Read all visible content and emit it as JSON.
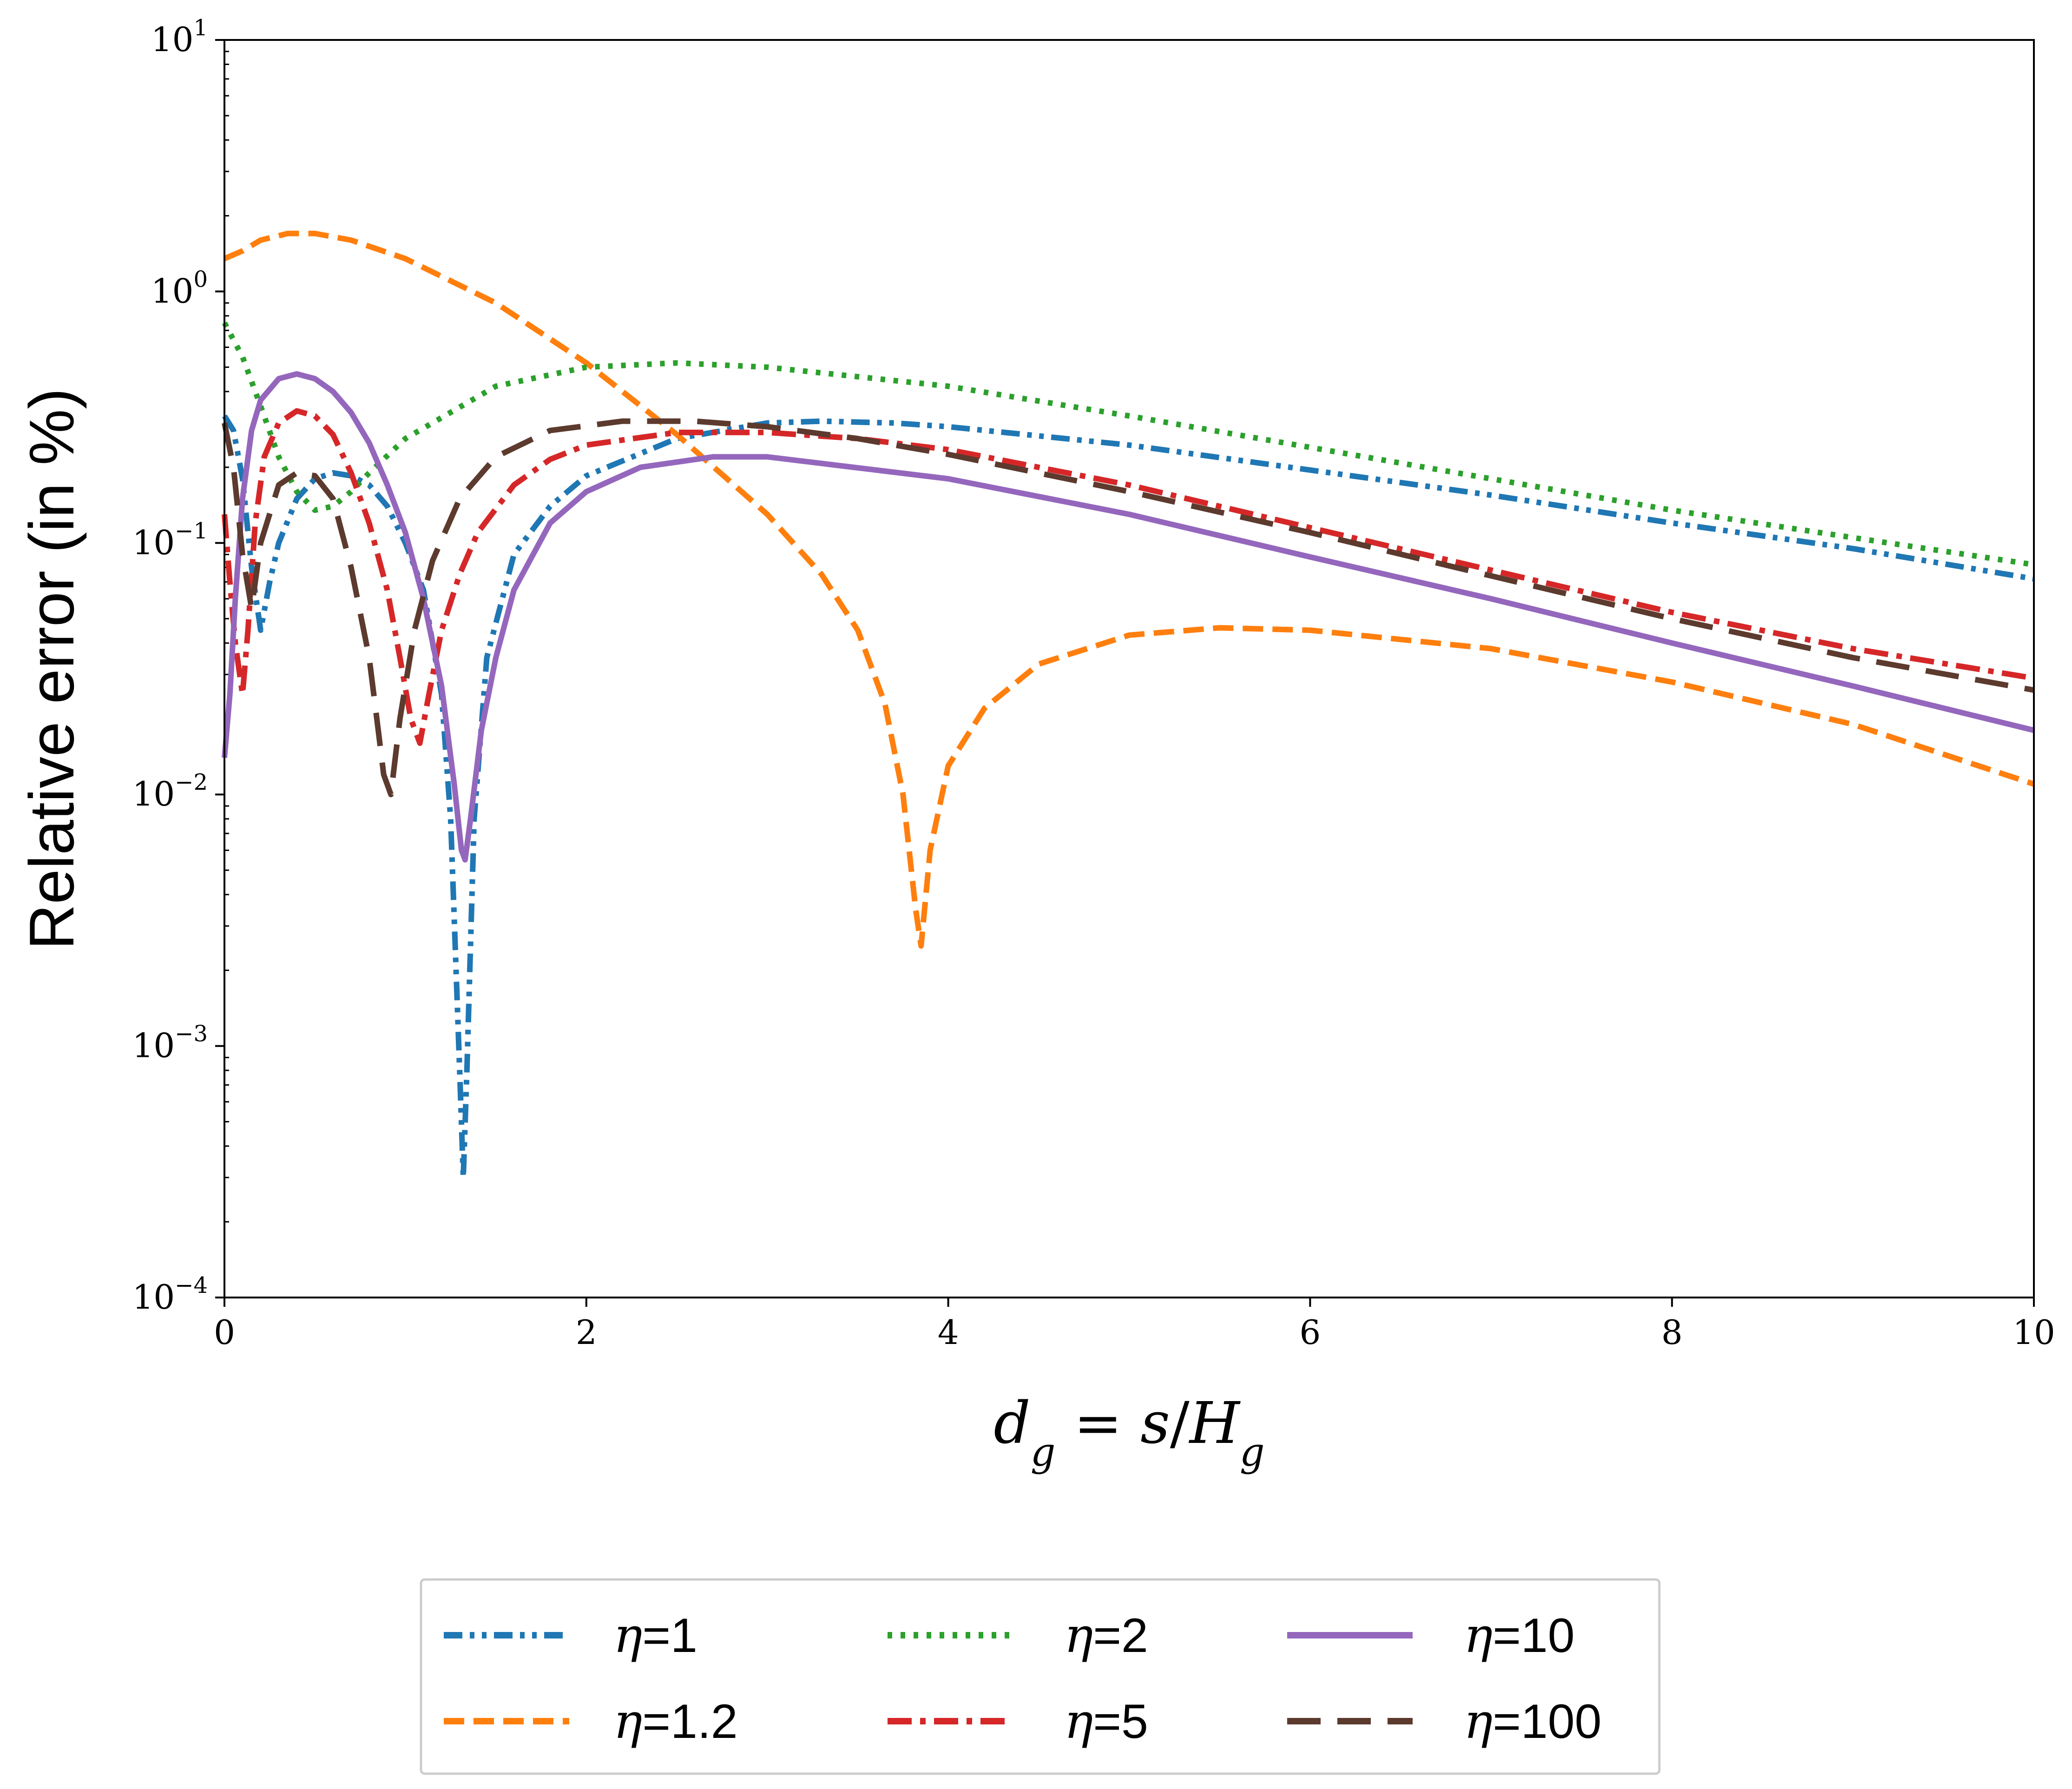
{
  "chart_data": {
    "type": "line",
    "title": "",
    "xlabel": "d_g = s/H_g",
    "xlabel_parts": {
      "d": "d",
      "sub_g": "g",
      "eq": " = ",
      "s": "s",
      "slash": "/",
      "H": "H",
      "sub_g2": "g"
    },
    "ylabel": "Relative error (in %)",
    "yscale": "log",
    "xlim": [
      0,
      10
    ],
    "ylim": [
      0.0001,
      10
    ],
    "x_ticks": [
      "0",
      "2",
      "4",
      "6",
      "8",
      "10"
    ],
    "y_ticks": [
      {
        "base": "10",
        "exp": "−4"
      },
      {
        "base": "10",
        "exp": "−3"
      },
      {
        "base": "10",
        "exp": "−2"
      },
      {
        "base": "10",
        "exp": "−1"
      },
      {
        "base": "10",
        "exp": "0"
      },
      {
        "base": "10",
        "exp": "1"
      }
    ],
    "legend_position": "below-center",
    "legend_prefix": "η",
    "series": [
      {
        "name": "η=1",
        "label_suffix": "=1",
        "color": "#1f77b4",
        "style": "dashdotdot",
        "points": [
          [
            0,
            0.32
          ],
          [
            0.05,
            0.28
          ],
          [
            0.1,
            0.18
          ],
          [
            0.15,
            0.08
          ],
          [
            0.2,
            0.045
          ],
          [
            0.25,
            0.07
          ],
          [
            0.3,
            0.1
          ],
          [
            0.4,
            0.15
          ],
          [
            0.5,
            0.18
          ],
          [
            0.6,
            0.19
          ],
          [
            0.7,
            0.185
          ],
          [
            0.8,
            0.17
          ],
          [
            0.9,
            0.14
          ],
          [
            1.0,
            0.1
          ],
          [
            1.1,
            0.065
          ],
          [
            1.2,
            0.025
          ],
          [
            1.25,
            0.008
          ],
          [
            1.3,
            0.0008
          ],
          [
            1.32,
            0.0003
          ],
          [
            1.34,
            0.0008
          ],
          [
            1.38,
            0.008
          ],
          [
            1.45,
            0.035
          ],
          [
            1.6,
            0.09
          ],
          [
            1.8,
            0.14
          ],
          [
            2.0,
            0.185
          ],
          [
            2.5,
            0.26
          ],
          [
            3.0,
            0.3
          ],
          [
            3.3,
            0.305
          ],
          [
            3.7,
            0.3
          ],
          [
            4.0,
            0.29
          ],
          [
            5,
            0.245
          ],
          [
            6,
            0.195
          ],
          [
            7,
            0.155
          ],
          [
            8,
            0.12
          ],
          [
            9,
            0.095
          ],
          [
            10,
            0.072
          ]
        ]
      },
      {
        "name": "η=1.2",
        "label_suffix": "=1.2",
        "color": "#ff7f0e",
        "style": "dashed",
        "points": [
          [
            0,
            1.35
          ],
          [
            0.1,
            1.45
          ],
          [
            0.2,
            1.6
          ],
          [
            0.35,
            1.7
          ],
          [
            0.5,
            1.7
          ],
          [
            0.7,
            1.6
          ],
          [
            1.0,
            1.35
          ],
          [
            1.5,
            0.9
          ],
          [
            2.0,
            0.52
          ],
          [
            2.5,
            0.27
          ],
          [
            3.0,
            0.13
          ],
          [
            3.3,
            0.075
          ],
          [
            3.5,
            0.045
          ],
          [
            3.65,
            0.023
          ],
          [
            3.75,
            0.01
          ],
          [
            3.82,
            0.0035
          ],
          [
            3.85,
            0.0025
          ],
          [
            3.9,
            0.006
          ],
          [
            4.0,
            0.013
          ],
          [
            4.2,
            0.022
          ],
          [
            4.5,
            0.033
          ],
          [
            5.0,
            0.043
          ],
          [
            5.5,
            0.046
          ],
          [
            6.0,
            0.045
          ],
          [
            7.0,
            0.038
          ],
          [
            8.0,
            0.028
          ],
          [
            9.0,
            0.019
          ],
          [
            10,
            0.011
          ]
        ]
      },
      {
        "name": "η=2",
        "label_suffix": "=2",
        "color": "#2ca02c",
        "style": "dotted",
        "points": [
          [
            0,
            0.75
          ],
          [
            0.1,
            0.55
          ],
          [
            0.2,
            0.35
          ],
          [
            0.3,
            0.22
          ],
          [
            0.4,
            0.16
          ],
          [
            0.5,
            0.135
          ],
          [
            0.6,
            0.14
          ],
          [
            0.7,
            0.16
          ],
          [
            0.8,
            0.19
          ],
          [
            1.0,
            0.26
          ],
          [
            1.5,
            0.42
          ],
          [
            2.0,
            0.5
          ],
          [
            2.5,
            0.52
          ],
          [
            3.0,
            0.5
          ],
          [
            4.0,
            0.42
          ],
          [
            5.0,
            0.32
          ],
          [
            6.0,
            0.24
          ],
          [
            7.0,
            0.18
          ],
          [
            8.0,
            0.135
          ],
          [
            9.0,
            0.105
          ],
          [
            10,
            0.082
          ]
        ]
      },
      {
        "name": "η=5",
        "label_suffix": "=5",
        "color": "#d62728",
        "style": "dashdot",
        "points": [
          [
            0,
            0.13
          ],
          [
            0.03,
            0.07
          ],
          [
            0.06,
            0.04
          ],
          [
            0.1,
            0.025
          ],
          [
            0.13,
            0.045
          ],
          [
            0.17,
            0.12
          ],
          [
            0.22,
            0.22
          ],
          [
            0.3,
            0.3
          ],
          [
            0.4,
            0.335
          ],
          [
            0.5,
            0.32
          ],
          [
            0.6,
            0.27
          ],
          [
            0.7,
            0.19
          ],
          [
            0.8,
            0.12
          ],
          [
            0.9,
            0.065
          ],
          [
            0.97,
            0.035
          ],
          [
            1.03,
            0.02
          ],
          [
            1.08,
            0.016
          ],
          [
            1.13,
            0.025
          ],
          [
            1.2,
            0.045
          ],
          [
            1.3,
            0.075
          ],
          [
            1.4,
            0.11
          ],
          [
            1.6,
            0.17
          ],
          [
            1.8,
            0.215
          ],
          [
            2.0,
            0.245
          ],
          [
            2.5,
            0.275
          ],
          [
            3.0,
            0.275
          ],
          [
            3.5,
            0.26
          ],
          [
            4.0,
            0.235
          ],
          [
            5.0,
            0.17
          ],
          [
            6.0,
            0.115
          ],
          [
            7.0,
            0.078
          ],
          [
            8.0,
            0.053
          ],
          [
            9.0,
            0.038
          ],
          [
            10,
            0.029
          ]
        ]
      },
      {
        "name": "η=10",
        "label_suffix": "=10",
        "color": "#9467bd",
        "style": "solid",
        "points": [
          [
            0,
            0.014
          ],
          [
            0.03,
            0.025
          ],
          [
            0.06,
            0.06
          ],
          [
            0.1,
            0.15
          ],
          [
            0.15,
            0.28
          ],
          [
            0.2,
            0.37
          ],
          [
            0.3,
            0.45
          ],
          [
            0.4,
            0.47
          ],
          [
            0.5,
            0.45
          ],
          [
            0.6,
            0.4
          ],
          [
            0.7,
            0.33
          ],
          [
            0.8,
            0.25
          ],
          [
            0.9,
            0.17
          ],
          [
            1.0,
            0.11
          ],
          [
            1.1,
            0.06
          ],
          [
            1.2,
            0.027
          ],
          [
            1.27,
            0.011
          ],
          [
            1.31,
            0.006
          ],
          [
            1.33,
            0.0055
          ],
          [
            1.36,
            0.008
          ],
          [
            1.42,
            0.018
          ],
          [
            1.5,
            0.035
          ],
          [
            1.6,
            0.065
          ],
          [
            1.8,
            0.12
          ],
          [
            2.0,
            0.16
          ],
          [
            2.3,
            0.2
          ],
          [
            2.7,
            0.22
          ],
          [
            3.0,
            0.22
          ],
          [
            4.0,
            0.18
          ],
          [
            5.0,
            0.13
          ],
          [
            6.0,
            0.088
          ],
          [
            7.0,
            0.06
          ],
          [
            8.0,
            0.04
          ],
          [
            9.0,
            0.027
          ],
          [
            10,
            0.018
          ]
        ]
      },
      {
        "name": "η=100",
        "label_suffix": "=100",
        "color": "#5c3a2e",
        "style": "longdash",
        "points": [
          [
            0,
            0.3
          ],
          [
            0.05,
            0.2
          ],
          [
            0.1,
            0.09
          ],
          [
            0.15,
            0.055
          ],
          [
            0.2,
            0.1
          ],
          [
            0.3,
            0.17
          ],
          [
            0.4,
            0.19
          ],
          [
            0.5,
            0.185
          ],
          [
            0.6,
            0.15
          ],
          [
            0.7,
            0.08
          ],
          [
            0.8,
            0.035
          ],
          [
            0.85,
            0.018
          ],
          [
            0.88,
            0.012
          ],
          [
            0.92,
            0.01
          ],
          [
            0.97,
            0.02
          ],
          [
            1.05,
            0.045
          ],
          [
            1.15,
            0.085
          ],
          [
            1.3,
            0.15
          ],
          [
            1.5,
            0.22
          ],
          [
            1.8,
            0.28
          ],
          [
            2.2,
            0.305
          ],
          [
            2.6,
            0.305
          ],
          [
            3.0,
            0.29
          ],
          [
            3.5,
            0.26
          ],
          [
            4.0,
            0.225
          ],
          [
            5.0,
            0.16
          ],
          [
            6.0,
            0.11
          ],
          [
            7.0,
            0.074
          ],
          [
            8.0,
            0.05
          ],
          [
            9.0,
            0.035
          ],
          [
            10,
            0.026
          ]
        ]
      }
    ]
  }
}
